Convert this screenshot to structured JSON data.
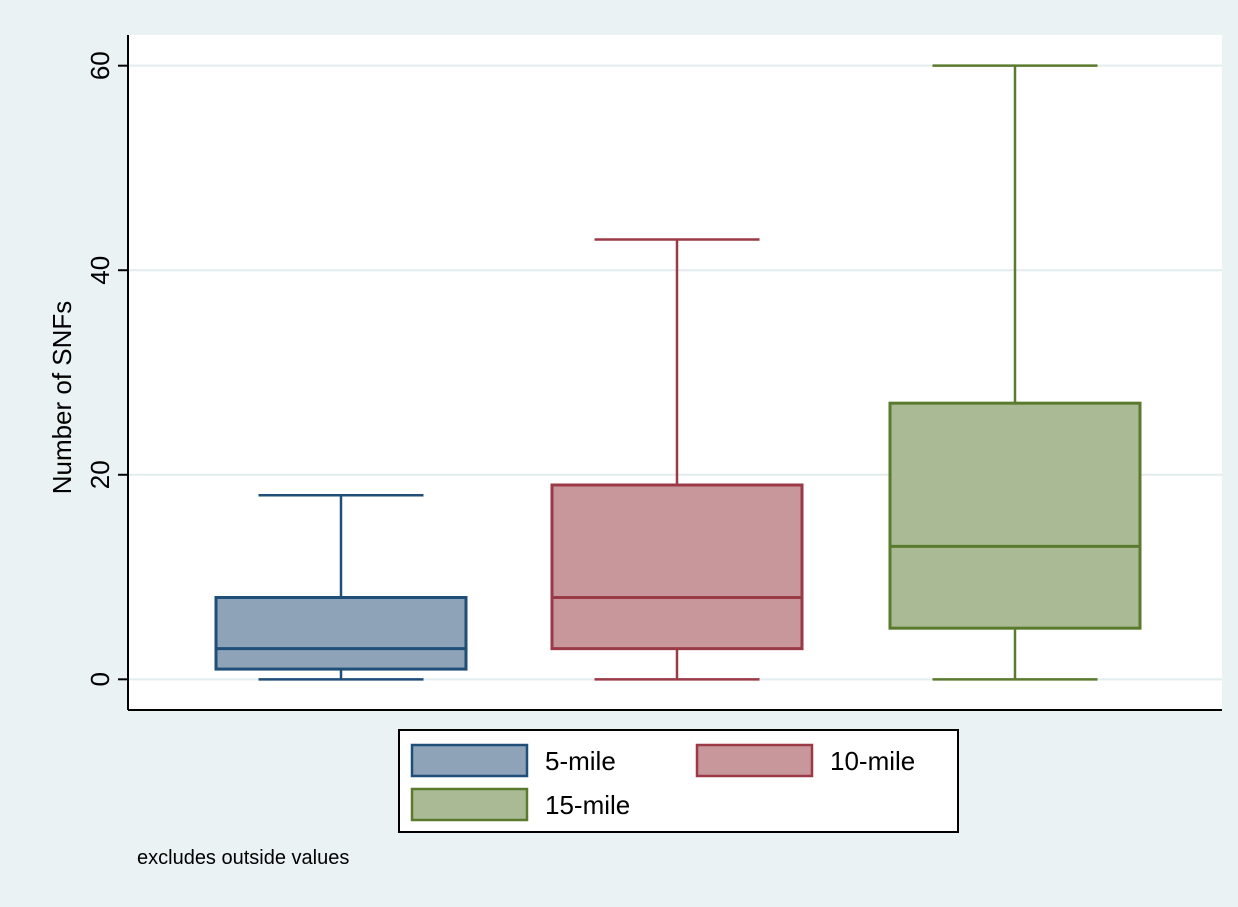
{
  "chart_data": {
    "type": "box",
    "ylabel": "Number of SNFs",
    "xlabel": "",
    "ylim": [
      -3,
      63
    ],
    "yticks": [
      0,
      20,
      40,
      60
    ],
    "grid": true,
    "legend_placement": "bottom-center",
    "note": "excludes outside values",
    "series": [
      {
        "name": "5-mile",
        "whisker_low": 0,
        "q1": 1,
        "median": 3,
        "q3": 8,
        "whisker_high": 18,
        "fill": "#8ea3b8",
        "stroke": "#1f4e79"
      },
      {
        "name": "10-mile",
        "whisker_low": 0,
        "q1": 3,
        "median": 8,
        "q3": 19,
        "whisker_high": 43,
        "fill": "#c8979b",
        "stroke": "#9b3a46"
      },
      {
        "name": "15-mile",
        "whisker_low": 0,
        "q1": 5,
        "median": 13,
        "q3": 27,
        "whisker_high": 60,
        "fill": "#a9ba95",
        "stroke": "#5a7a2e"
      }
    ],
    "colors": {
      "background": "#eaf2f3",
      "plot_background": "#ffffff",
      "grid": "#e3ecee"
    }
  }
}
